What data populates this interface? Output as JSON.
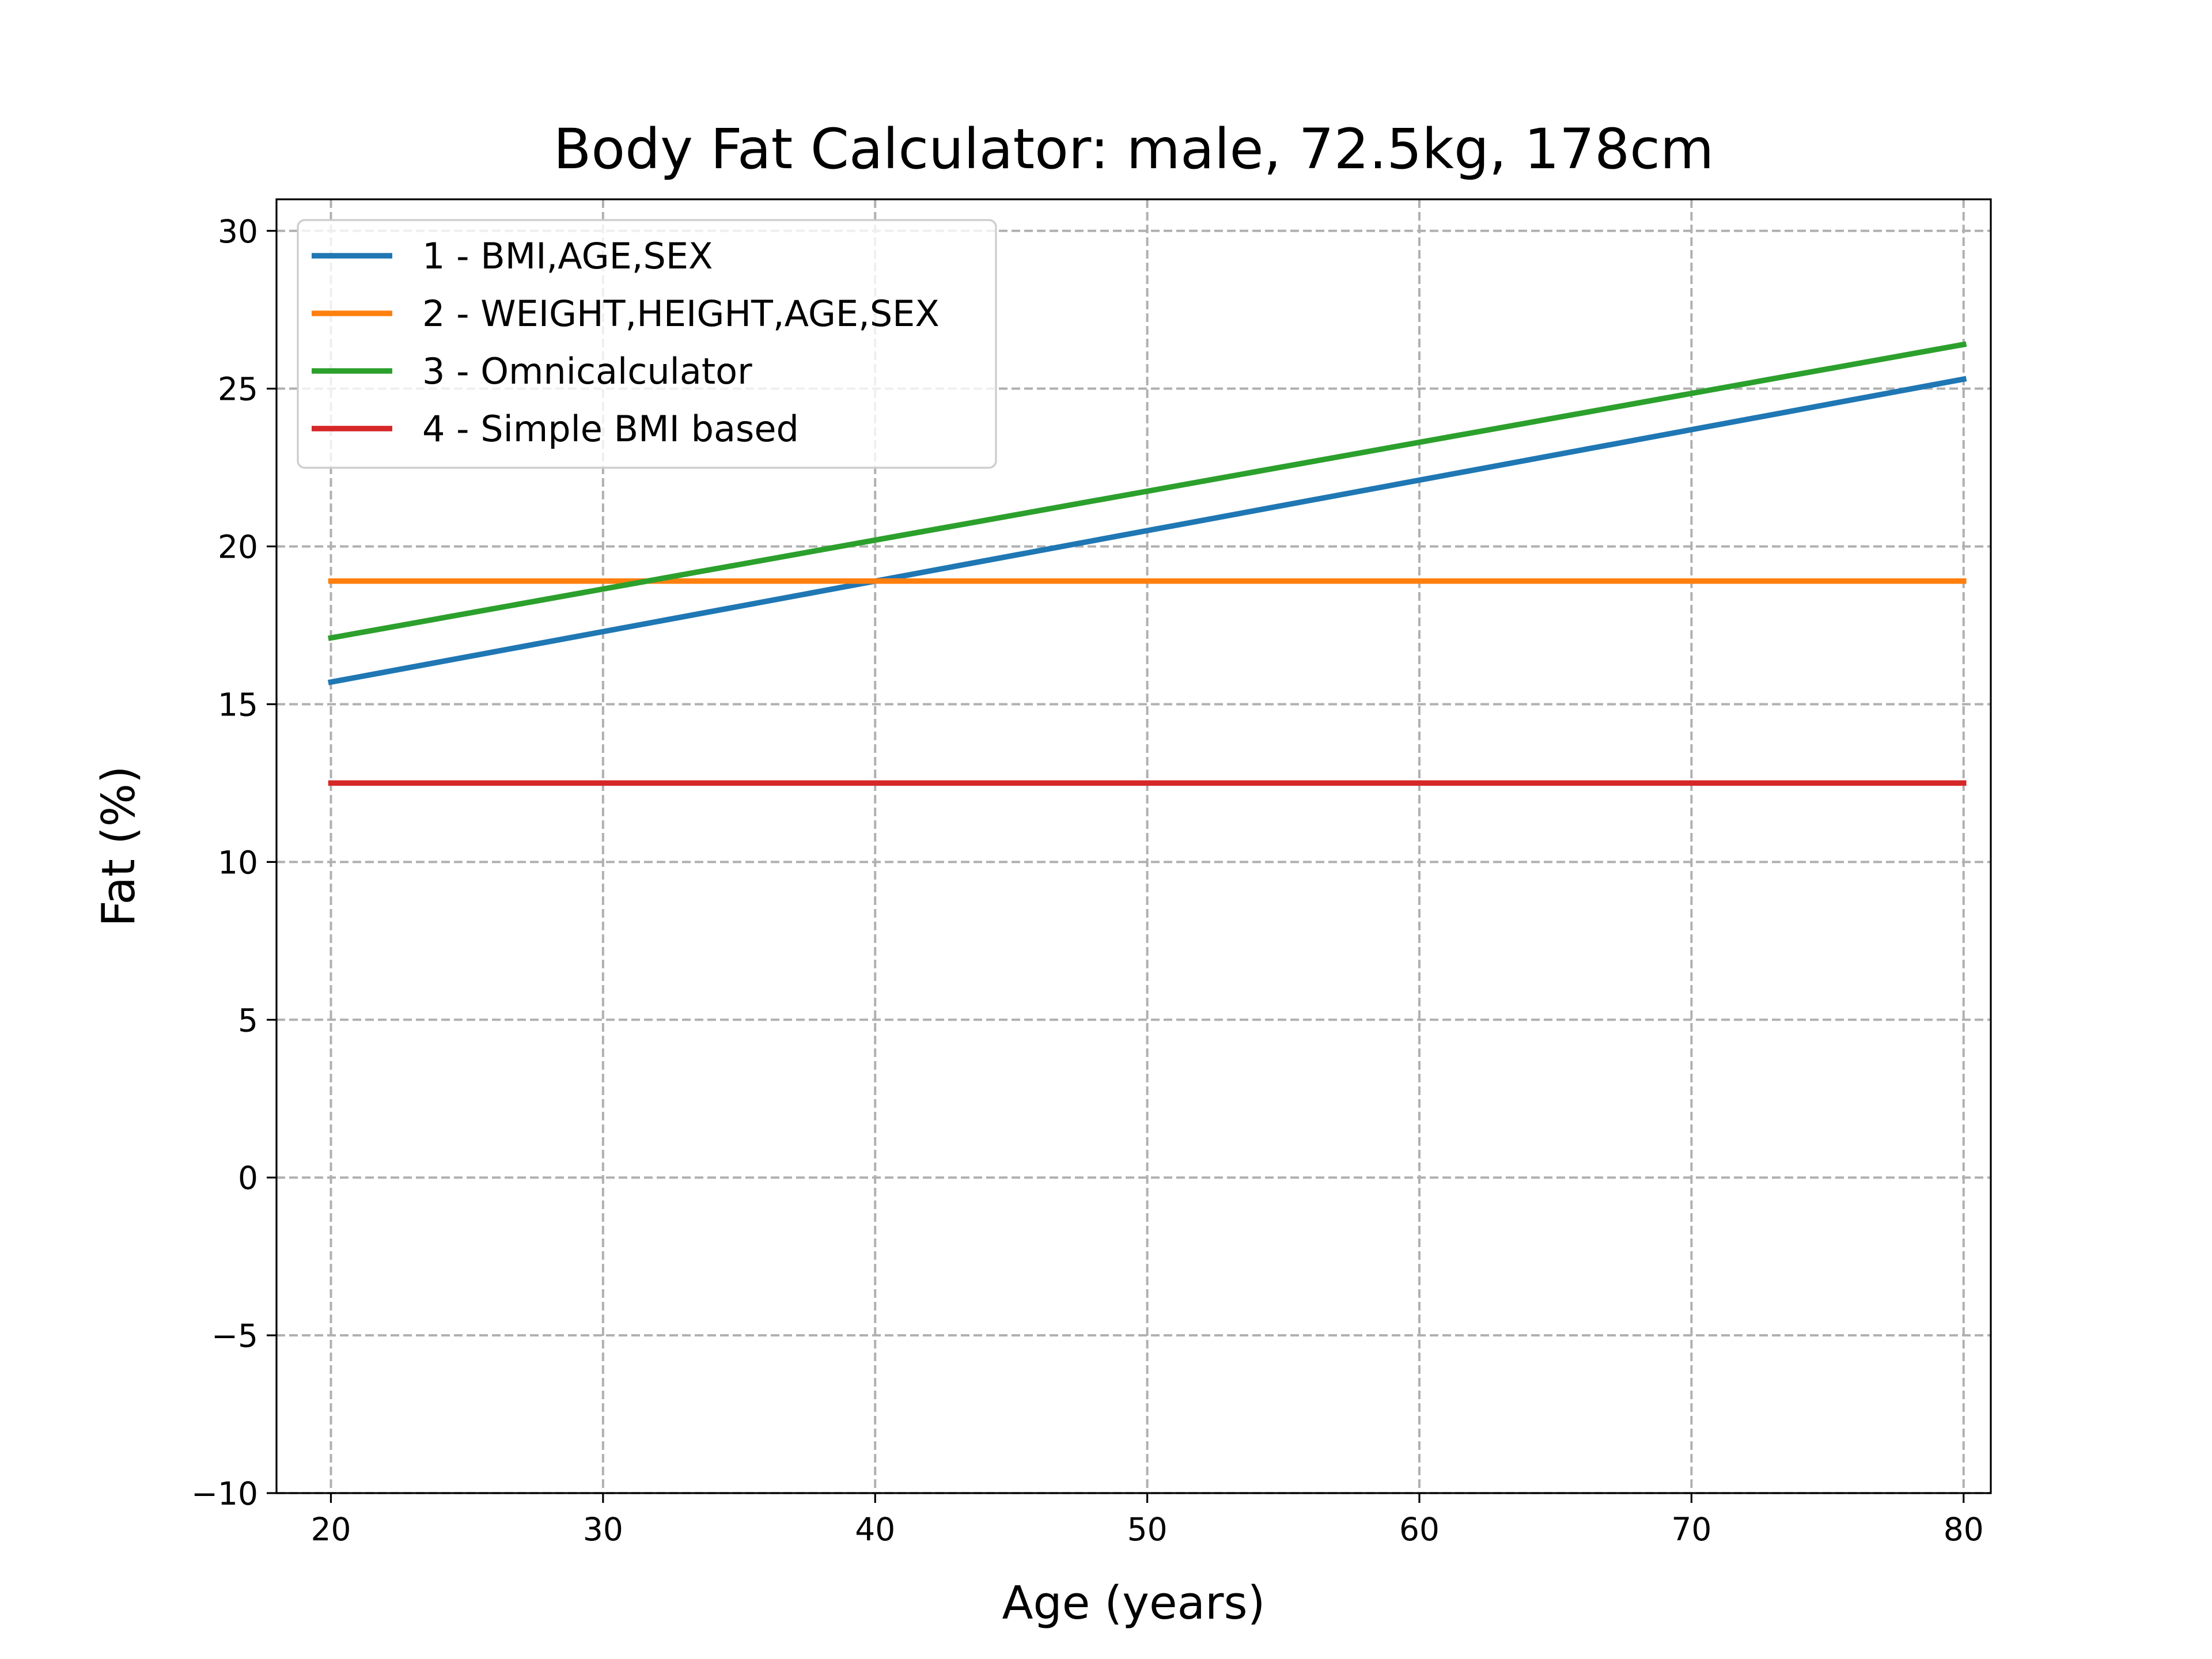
{
  "chart_data": {
    "type": "line",
    "title": "Body Fat Calculator: male, 72.5kg, 178cm",
    "xlabel": "Age (years)",
    "ylabel": "Fat (%)",
    "xlim": [
      18,
      81
    ],
    "ylim": [
      -10,
      31
    ],
    "xticks": [
      20,
      30,
      40,
      50,
      60,
      70,
      80
    ],
    "yticks": [
      -10,
      -5,
      0,
      5,
      10,
      15,
      20,
      25,
      30
    ],
    "x": [
      20,
      80
    ],
    "grid": true,
    "legend_position": "top-left",
    "series": [
      {
        "name": "1 - BMI,AGE,SEX",
        "color": "#1f77b4",
        "values": [
          15.7,
          25.3
        ]
      },
      {
        "name": "2 - WEIGHT,HEIGHT,AGE,SEX",
        "color": "#ff7f0e",
        "values": [
          18.9,
          18.9
        ]
      },
      {
        "name": "3 - Omnicalculator",
        "color": "#2ca02c",
        "values": [
          17.1,
          26.4
        ]
      },
      {
        "name": "4 - Simple BMI based",
        "color": "#d62728",
        "values": [
          12.5,
          12.5
        ]
      }
    ]
  }
}
